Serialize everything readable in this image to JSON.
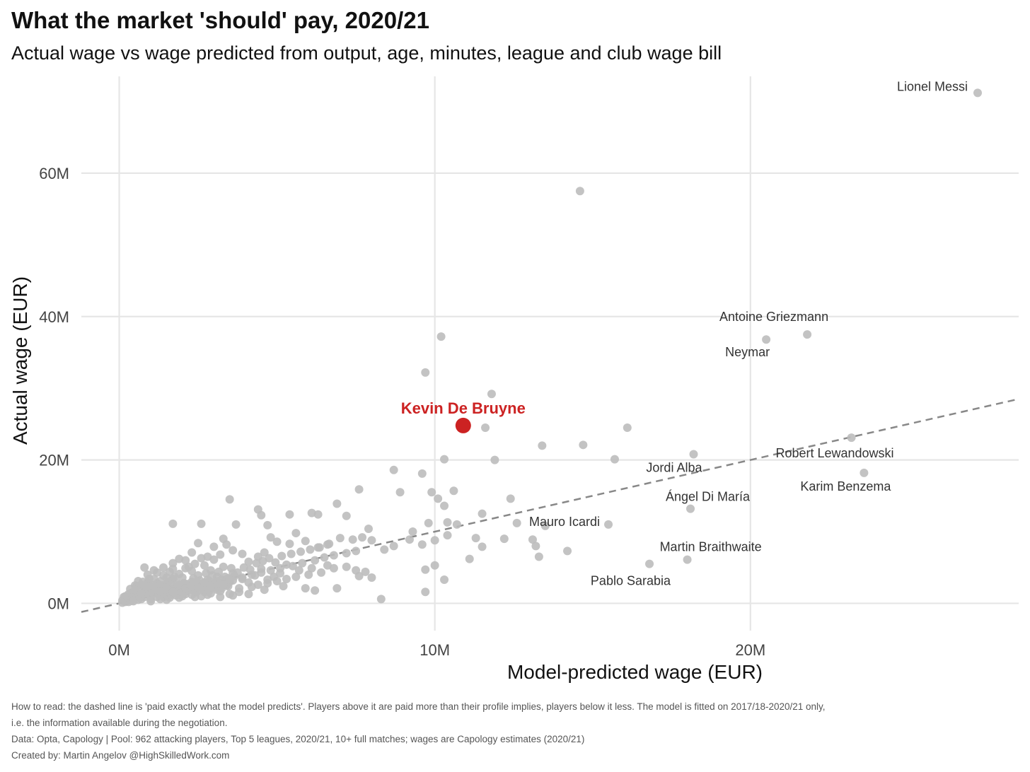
{
  "header": {
    "title": "What the market 'should' pay, 2020/21",
    "subtitle": "Actual wage vs wage predicted from output, age, minutes, league and club wage bill"
  },
  "footer": {
    "note_line1": "How to read: the dashed line is 'paid exactly what the model predicts'. Players above it are paid more than their profile implies, players below it less. The model is fitted on 2017/18-2020/21 only,",
    "note_line2": "i.e. the information available during the negotiation.",
    "data_line": "Data: Opta, Capology | Pool: 962 attacking players, Top 5 leagues, 2020/21, 10+ full matches; wages are Capology estimates (2020/21)",
    "credit_line": "Created by: Martin Angelov @HighSkilledWork.com"
  },
  "colors": {
    "point": "#bdbdbd",
    "highlight": "#cc2222",
    "grid": "#e6e6e6",
    "reference_line": "#888888",
    "label": "#333333"
  },
  "chart_data": {
    "type": "scatter",
    "xlabel": "Model-predicted wage (EUR)",
    "ylabel": "Actual wage (EUR)",
    "xlim": [
      -1.2,
      28.5
    ],
    "ylim": [
      -3.8,
      73.5
    ],
    "x_ticks": [
      0,
      10,
      20
    ],
    "x_tick_labels": [
      "0M",
      "10M",
      "20M"
    ],
    "y_ticks": [
      0,
      20,
      40,
      60
    ],
    "y_tick_labels": [
      "0M",
      "20M",
      "40M",
      "60M"
    ],
    "unit": "M EUR",
    "grid": true,
    "reference_line": {
      "label": "paid exactly what the model predicts",
      "x": [
        -1.2,
        28.5
      ],
      "y": [
        -1.2,
        28.5
      ],
      "style": "dashed"
    },
    "highlight": {
      "name": "Kevin De Bruyne",
      "x": 10.9,
      "y": 24.8
    },
    "labeled_points": [
      {
        "name": "Lionel Messi",
        "x": 27.2,
        "y": 71.2
      },
      {
        "name": "Antoine Griezmann",
        "x": 21.8,
        "y": 37.5
      },
      {
        "name": "Neymar",
        "x": 20.5,
        "y": 36.8
      },
      {
        "name": "Robert Lewandowski",
        "x": 23.2,
        "y": 23.1
      },
      {
        "name": "Karim Benzema",
        "x": 23.6,
        "y": 18.2
      },
      {
        "name": "Jordi Alba",
        "x": 18.2,
        "y": 20.8
      },
      {
        "name": "Ángel Di María",
        "x": 18.1,
        "y": 13.2
      },
      {
        "name": "Mauro Icardi",
        "x": 15.5,
        "y": 11.0
      },
      {
        "name": "Martin Braithwaite",
        "x": 18.0,
        "y": 6.1
      },
      {
        "name": "Pablo Sarabia",
        "x": 16.8,
        "y": 5.5
      }
    ],
    "points": [
      [
        14.6,
        57.5
      ],
      [
        10.2,
        37.2
      ],
      [
        9.7,
        32.2
      ],
      [
        11.8,
        29.2
      ],
      [
        11.6,
        24.5
      ],
      [
        16.1,
        24.5
      ],
      [
        13.4,
        22.0
      ],
      [
        14.7,
        22.1
      ],
      [
        10.3,
        20.1
      ],
      [
        11.9,
        20.0
      ],
      [
        15.7,
        20.1
      ],
      [
        9.6,
        18.1
      ],
      [
        8.7,
        18.6
      ],
      [
        8.9,
        15.5
      ],
      [
        9.9,
        15.5
      ],
      [
        10.6,
        15.7
      ],
      [
        7.6,
        15.9
      ],
      [
        12.4,
        14.6
      ],
      [
        10.1,
        14.6
      ],
      [
        10.3,
        13.6
      ],
      [
        3.5,
        14.5
      ],
      [
        6.9,
        13.9
      ],
      [
        4.4,
        13.1
      ],
      [
        4.5,
        12.3
      ],
      [
        5.4,
        12.4
      ],
      [
        6.3,
        12.4
      ],
      [
        6.1,
        12.6
      ],
      [
        7.2,
        12.2
      ],
      [
        11.5,
        12.5
      ],
      [
        9.8,
        11.2
      ],
      [
        10.4,
        11.3
      ],
      [
        10.7,
        11.0
      ],
      [
        12.6,
        11.2
      ],
      [
        13.5,
        10.8
      ],
      [
        4.7,
        10.9
      ],
      [
        3.7,
        11.0
      ],
      [
        2.6,
        11.1
      ],
      [
        1.7,
        11.1
      ],
      [
        7.9,
        10.4
      ],
      [
        9.3,
        10.0
      ],
      [
        11.3,
        9.1
      ],
      [
        12.2,
        9.0
      ],
      [
        13.1,
        8.9
      ],
      [
        13.2,
        8.0
      ],
      [
        13.3,
        6.5
      ],
      [
        14.2,
        7.3
      ],
      [
        11.5,
        7.9
      ],
      [
        10.4,
        9.5
      ],
      [
        10.0,
        8.8
      ],
      [
        9.6,
        8.2
      ],
      [
        9.2,
        8.9
      ],
      [
        8.7,
        8.0
      ],
      [
        8.4,
        7.5
      ],
      [
        8.0,
        8.8
      ],
      [
        7.7,
        9.2
      ],
      [
        7.4,
        8.9
      ],
      [
        7.0,
        9.1
      ],
      [
        6.6,
        8.2
      ],
      [
        6.3,
        7.8
      ],
      [
        5.9,
        8.7
      ],
      [
        5.6,
        9.8
      ],
      [
        5.4,
        8.3
      ],
      [
        5.0,
        8.6
      ],
      [
        4.8,
        9.2
      ],
      [
        4.6,
        7.1
      ],
      [
        4.4,
        6.5
      ],
      [
        4.1,
        5.8
      ],
      [
        3.9,
        6.9
      ],
      [
        3.6,
        7.4
      ],
      [
        3.4,
        8.2
      ],
      [
        3.3,
        9.0
      ],
      [
        3.0,
        7.9
      ],
      [
        2.8,
        6.5
      ],
      [
        2.5,
        8.4
      ],
      [
        2.3,
        7.1
      ],
      [
        2.1,
        6.0
      ],
      [
        1.9,
        6.2
      ],
      [
        1.7,
        5.6
      ],
      [
        1.4,
        5.0
      ],
      [
        1.2,
        4.3
      ],
      [
        0.8,
        5.0
      ],
      [
        0.6,
        3.1
      ],
      [
        0.5,
        2.5
      ],
      [
        0.4,
        1.5
      ],
      [
        0.2,
        1.0
      ],
      [
        0.1,
        0.4
      ],
      [
        0.3,
        0.2
      ],
      [
        0.7,
        0.6
      ],
      [
        1.0,
        0.3
      ],
      [
        1.5,
        0.5
      ],
      [
        1.9,
        0.8
      ],
      [
        2.4,
        0.9
      ],
      [
        2.8,
        1.2
      ],
      [
        3.2,
        0.9
      ],
      [
        3.6,
        1.1
      ],
      [
        4.1,
        1.3
      ],
      [
        4.6,
        1.9
      ],
      [
        5.2,
        2.4
      ],
      [
        5.9,
        2.1
      ],
      [
        6.2,
        1.8
      ],
      [
        6.9,
        2.1
      ],
      [
        7.6,
        3.8
      ],
      [
        7.8,
        4.4
      ],
      [
        8.3,
        0.6
      ],
      [
        9.7,
        1.6
      ],
      [
        10.3,
        3.3
      ],
      [
        11.1,
        6.2
      ],
      [
        10.0,
        5.3
      ],
      [
        9.7,
        4.7
      ],
      [
        8.0,
        3.6
      ],
      [
        7.5,
        4.6
      ],
      [
        6.6,
        5.3
      ],
      [
        6.1,
        4.9
      ],
      [
        5.7,
        4.6
      ],
      [
        5.3,
        5.4
      ],
      [
        5.1,
        4.2
      ],
      [
        4.9,
        3.7
      ],
      [
        4.7,
        3.3
      ],
      [
        4.5,
        4.8
      ],
      [
        4.3,
        3.9
      ],
      [
        4.2,
        2.3
      ],
      [
        3.9,
        3.4
      ],
      [
        3.8,
        2.1
      ],
      [
        3.6,
        4.2
      ],
      [
        3.5,
        3.0
      ],
      [
        3.4,
        2.5
      ],
      [
        3.3,
        5.1
      ],
      [
        3.1,
        3.7
      ],
      [
        3.1,
        1.9
      ],
      [
        2.9,
        4.6
      ],
      [
        2.9,
        2.7
      ],
      [
        2.8,
        3.3
      ],
      [
        2.7,
        5.3
      ],
      [
        2.7,
        1.6
      ],
      [
        2.6,
        2.2
      ],
      [
        2.5,
        3.9
      ],
      [
        2.5,
        2.8
      ],
      [
        2.4,
        1.5
      ],
      [
        2.3,
        4.5
      ],
      [
        2.3,
        3.0
      ],
      [
        2.2,
        2.1
      ],
      [
        2.2,
        5.1
      ],
      [
        2.1,
        1.3
      ],
      [
        2.0,
        3.6
      ],
      [
        2.0,
        2.5
      ],
      [
        1.9,
        4.1
      ],
      [
        1.9,
        1.8
      ],
      [
        1.8,
        2.9
      ],
      [
        1.8,
        1.1
      ],
      [
        1.7,
        3.4
      ],
      [
        1.7,
        2.1
      ],
      [
        1.6,
        4.4
      ],
      [
        1.6,
        1.5
      ],
      [
        1.5,
        2.7
      ],
      [
        1.5,
        3.6
      ],
      [
        1.4,
        1.9
      ],
      [
        1.4,
        0.9
      ],
      [
        1.3,
        3.1
      ],
      [
        1.3,
        2.3
      ],
      [
        1.2,
        1.4
      ],
      [
        1.2,
        2.8
      ],
      [
        1.1,
        1.8
      ],
      [
        1.1,
        3.4
      ],
      [
        1.0,
        2.3
      ],
      [
        1.0,
        1.1
      ],
      [
        0.9,
        2.9
      ],
      [
        0.9,
        1.6
      ],
      [
        0.8,
        2.1
      ],
      [
        0.8,
        0.9
      ],
      [
        0.7,
        1.8
      ],
      [
        0.7,
        2.6
      ],
      [
        0.6,
        1.2
      ],
      [
        0.6,
        0.5
      ],
      [
        0.5,
        1.6
      ],
      [
        0.5,
        0.8
      ],
      [
        0.4,
        0.4
      ],
      [
        0.4,
        1.0
      ],
      [
        0.3,
        0.7
      ],
      [
        0.3,
        1.3
      ],
      [
        0.2,
        0.5
      ],
      [
        0.2,
        0.2
      ],
      [
        0.15,
        0.9
      ],
      [
        0.1,
        0.1
      ],
      [
        1.3,
        0.6
      ],
      [
        1.6,
        0.8
      ],
      [
        2.0,
        1.0
      ],
      [
        2.3,
        1.2
      ],
      [
        2.6,
        1.0
      ],
      [
        2.9,
        1.4
      ],
      [
        3.2,
        1.7
      ],
      [
        3.5,
        1.3
      ],
      [
        3.8,
        1.6
      ],
      [
        4.1,
        2.9
      ],
      [
        4.4,
        2.6
      ],
      [
        4.7,
        2.8
      ],
      [
        5.0,
        3.1
      ],
      [
        5.3,
        3.4
      ],
      [
        5.6,
        3.7
      ],
      [
        6.0,
        4.0
      ],
      [
        6.4,
        4.3
      ],
      [
        6.8,
        4.9
      ],
      [
        7.2,
        5.1
      ],
      [
        0.9,
        4.0
      ],
      [
        1.1,
        4.6
      ],
      [
        1.4,
        3.9
      ],
      [
        1.7,
        4.8
      ],
      [
        2.1,
        4.9
      ],
      [
        2.4,
        5.5
      ],
      [
        2.6,
        6.3
      ],
      [
        3.0,
        6.1
      ],
      [
        3.2,
        6.8
      ],
      [
        1.0,
        0.6
      ],
      [
        1.2,
        0.9
      ],
      [
        1.5,
        1.2
      ],
      [
        1.8,
        1.5
      ],
      [
        2.1,
        1.7
      ],
      [
        2.4,
        2.0
      ],
      [
        2.7,
        2.4
      ],
      [
        3.0,
        2.6
      ],
      [
        3.3,
        2.9
      ],
      [
        3.6,
        3.2
      ],
      [
        3.9,
        3.6
      ],
      [
        4.2,
        4.0
      ],
      [
        4.5,
        4.3
      ],
      [
        4.8,
        4.6
      ],
      [
        5.1,
        4.9
      ],
      [
        5.5,
        5.2
      ],
      [
        5.8,
        5.6
      ],
      [
        6.2,
        6.0
      ],
      [
        6.5,
        6.4
      ],
      [
        6.8,
        6.7
      ],
      [
        7.2,
        7.0
      ],
      [
        7.5,
        7.3
      ],
      [
        0.35,
        2.0
      ],
      [
        0.55,
        2.4
      ],
      [
        0.75,
        3.0
      ],
      [
        0.95,
        3.4
      ],
      [
        1.15,
        2.0
      ],
      [
        1.35,
        2.5
      ],
      [
        1.55,
        3.0
      ],
      [
        1.75,
        3.7
      ],
      [
        1.95,
        2.4
      ],
      [
        2.15,
        2.7
      ],
      [
        2.35,
        3.5
      ],
      [
        2.55,
        3.2
      ],
      [
        2.75,
        4.2
      ],
      [
        2.95,
        3.9
      ],
      [
        3.15,
        4.4
      ],
      [
        3.35,
        3.7
      ],
      [
        3.55,
        4.9
      ],
      [
        3.75,
        4.3
      ],
      [
        3.95,
        5.0
      ],
      [
        4.15,
        4.7
      ],
      [
        4.35,
        5.6
      ],
      [
        4.55,
        5.9
      ],
      [
        4.75,
        6.3
      ],
      [
        4.95,
        5.7
      ],
      [
        5.15,
        6.6
      ],
      [
        5.45,
        6.9
      ],
      [
        5.75,
        7.2
      ],
      [
        6.05,
        7.5
      ],
      [
        6.35,
        7.8
      ],
      [
        6.65,
        8.3
      ],
      [
        1.0,
        2.0
      ],
      [
        1.25,
        2.6
      ],
      [
        1.45,
        2.2
      ],
      [
        1.65,
        2.6
      ],
      [
        1.85,
        2.2
      ],
      [
        2.05,
        2.8
      ],
      [
        2.25,
        2.5
      ],
      [
        2.45,
        3.0
      ],
      [
        2.65,
        2.6
      ],
      [
        2.85,
        3.1
      ],
      [
        3.05,
        2.9
      ],
      [
        3.25,
        3.3
      ],
      [
        3.45,
        3.5
      ],
      [
        3.65,
        3.8
      ],
      [
        0.45,
        0.3
      ],
      [
        0.65,
        0.9
      ],
      [
        0.85,
        1.4
      ],
      [
        1.05,
        1.5
      ],
      [
        1.25,
        1.2
      ],
      [
        1.45,
        1.6
      ],
      [
        1.65,
        1.2
      ],
      [
        1.85,
        1.9
      ],
      [
        2.05,
        1.5
      ],
      [
        2.25,
        1.9
      ],
      [
        2.45,
        1.6
      ],
      [
        2.65,
        2.0
      ],
      [
        2.85,
        1.8
      ],
      [
        3.05,
        2.2
      ],
      [
        3.25,
        2.1
      ],
      [
        3.45,
        2.4
      ],
      [
        0.5,
        1.9
      ],
      [
        0.7,
        1.4
      ],
      [
        0.9,
        2.4
      ],
      [
        1.1,
        2.5
      ],
      [
        1.3,
        1.7
      ],
      [
        1.5,
        2.0
      ],
      [
        1.7,
        1.6
      ],
      [
        1.9,
        2.6
      ],
      [
        2.1,
        2.1
      ],
      [
        2.3,
        2.4
      ],
      [
        2.5,
        2.2
      ],
      [
        2.7,
        2.9
      ],
      [
        2.9,
        2.3
      ],
      [
        3.1,
        3.1
      ],
      [
        3.3,
        2.6
      ],
      [
        3.5,
        3.3
      ]
    ]
  }
}
